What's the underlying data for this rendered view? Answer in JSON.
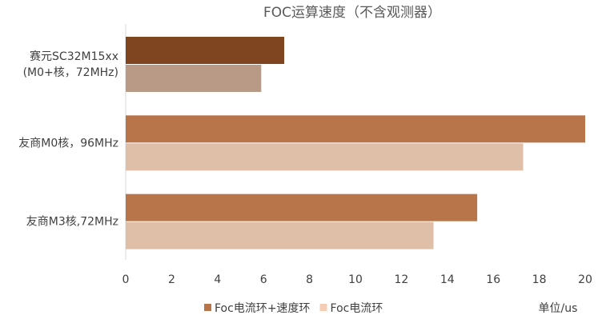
{
  "chart_data": {
    "type": "bar",
    "orientation": "horizontal",
    "title": "FOC运算速度（不含观测器）",
    "categories": [
      "赛元SC32M15xx\n(M0+核，72MHz)",
      "友商M0核，96MHz",
      "友商M3核,72MHz"
    ],
    "series": [
      {
        "name": "Foc电流环+速度环",
        "color": "#b8754a",
        "colors": [
          "#7f4520",
          "#b8754a",
          "#b8754a"
        ],
        "values": [
          6.9,
          20,
          15.3
        ]
      },
      {
        "name": "Foc电流环",
        "color": "#f5cdb4",
        "colors": [
          "#b99a87",
          "#e0bfa9",
          "#e0bfa9"
        ],
        "values": [
          5.9,
          17.3,
          13.4
        ]
      }
    ],
    "xlim": [
      0,
      20
    ],
    "xticks": [
      0,
      2,
      4,
      6,
      8,
      10,
      12,
      14,
      16,
      18,
      20
    ],
    "x_unit_label": "单位/us",
    "legend": "bottom"
  }
}
